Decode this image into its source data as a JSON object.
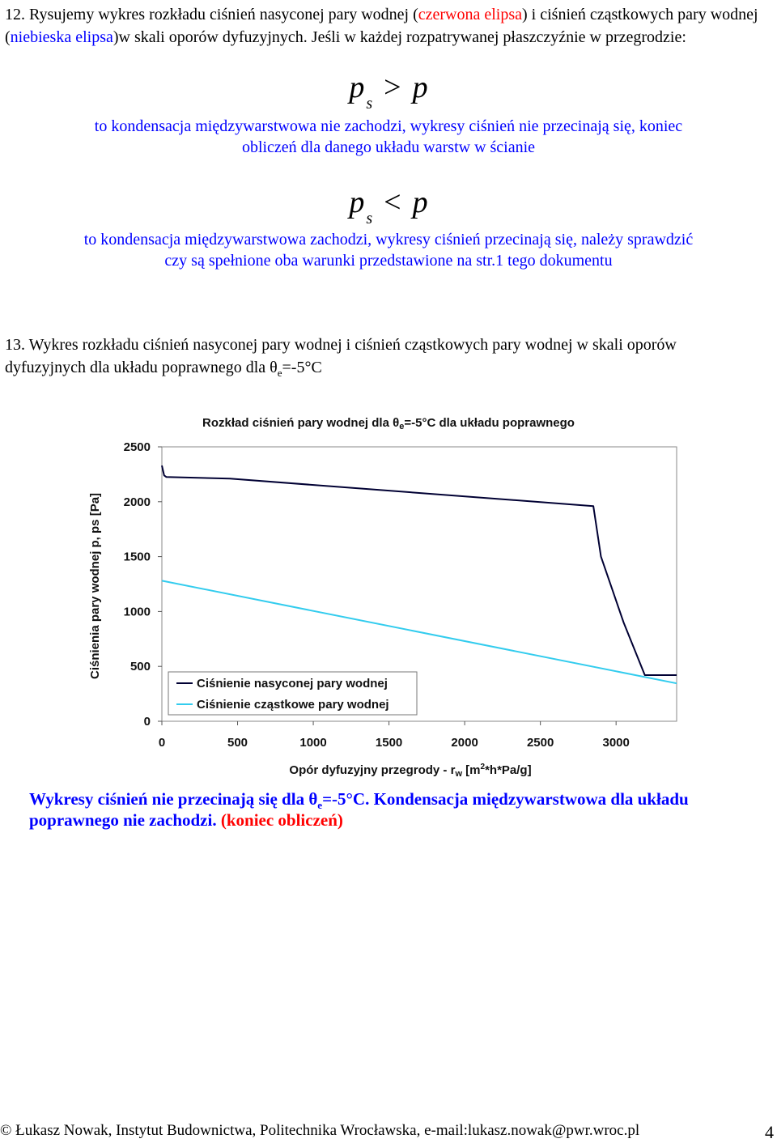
{
  "section12": {
    "number": "12.",
    "text_a": "Rysujemy wykres rozkładu ciśnień nasyconej pary wodnej (",
    "red_label": "czerwona elipsa",
    "text_b": ") i ciśnień cząstkowych pary wodnej (",
    "blue_label": "niebieska elipsa",
    "text_c": ")w skali oporów dyfuzyjnych. Jeśli w każdej rozpatrywanej płaszczyźnie w przegrodzie:"
  },
  "case1": {
    "formula_lhs": "p",
    "formula_sub": "s",
    "formula_op": ">",
    "formula_rhs": "p",
    "line1": "to kondensacja międzywarstwowa nie zachodzi, wykresy ciśnień nie przecinają się, koniec",
    "line2": "obliczeń dla danego układu warstw w ścianie"
  },
  "case2": {
    "formula_lhs": "p",
    "formula_sub": "s",
    "formula_op": "<",
    "formula_rhs": "p",
    "line1": "to kondensacja międzywarstwowa zachodzi, wykresy ciśnień przecinają się, należy sprawdzić",
    "line2": "czy są spełnione oba warunki przedstawione na str.1 tego dokumentu"
  },
  "section13": {
    "number": "13.",
    "text": "Wykres rozkładu ciśnień nasyconej pary wodnej i ciśnień cząstkowych pary wodnej w skali oporów dyfuzyjnych dla układu poprawnego dla θ",
    "sub": "e",
    "text_end": "=-5°C"
  },
  "chart_data": {
    "type": "line",
    "title_prefix": "Rozkład ciśnień pary wodnej dla θ",
    "title_sub": "e",
    "title_suffix": "=-5°C dla układu poprawnego",
    "xlabel_prefix": "Opór dyfuzyjny przegrody - r",
    "xlabel_sub": "w",
    "xlabel_mid": " [m",
    "xlabel_sup": "2",
    "xlabel_suffix": "*h*Pa/g]",
    "ylabel": "Ciśnienia pary wodnej p, ps [Pa]",
    "xlim": [
      0,
      3400
    ],
    "ylim": [
      0,
      2500
    ],
    "xticks": [
      "0",
      "500",
      "1000",
      "1500",
      "2000",
      "2500",
      "3000"
    ],
    "xtick_values": [
      0,
      500,
      1000,
      1500,
      2000,
      2500,
      3000
    ],
    "yticks": [
      "0",
      "500",
      "1000",
      "1500",
      "2000",
      "2500"
    ],
    "ytick_values": [
      0,
      500,
      1000,
      1500,
      2000,
      2500
    ],
    "legend_position": "bottom-left",
    "series": [
      {
        "name": "Ciśnienie nasyconej pary wodnej",
        "color": "#000033",
        "x": [
          0,
          15,
          30,
          450,
          2850,
          2900,
          3050,
          3190,
          3400
        ],
        "y": [
          2330,
          2240,
          2225,
          2210,
          1960,
          1500,
          900,
          420,
          420
        ]
      },
      {
        "name": "Ciśnienie cząstkowe pary wodnej",
        "color": "#33ccee",
        "x": [
          0,
          3400
        ],
        "y": [
          1280,
          345
        ]
      }
    ]
  },
  "conclusion": {
    "line1_a": "Wykresy ciśnień nie przecinają się dla θ",
    "line1_sub": "e",
    "line1_b": "=-5°C. Kondensacja międzywarstwowa dla układu",
    "line2_a": "poprawnego nie zachodzi.",
    "line2_red": " (koniec obliczeń)"
  },
  "footer": {
    "text": "© Łukasz Nowak, Instytut Budownictwa, Politechnika Wrocławska, e-mail:lukasz.nowak@pwr.wroc.pl",
    "page": "4"
  }
}
